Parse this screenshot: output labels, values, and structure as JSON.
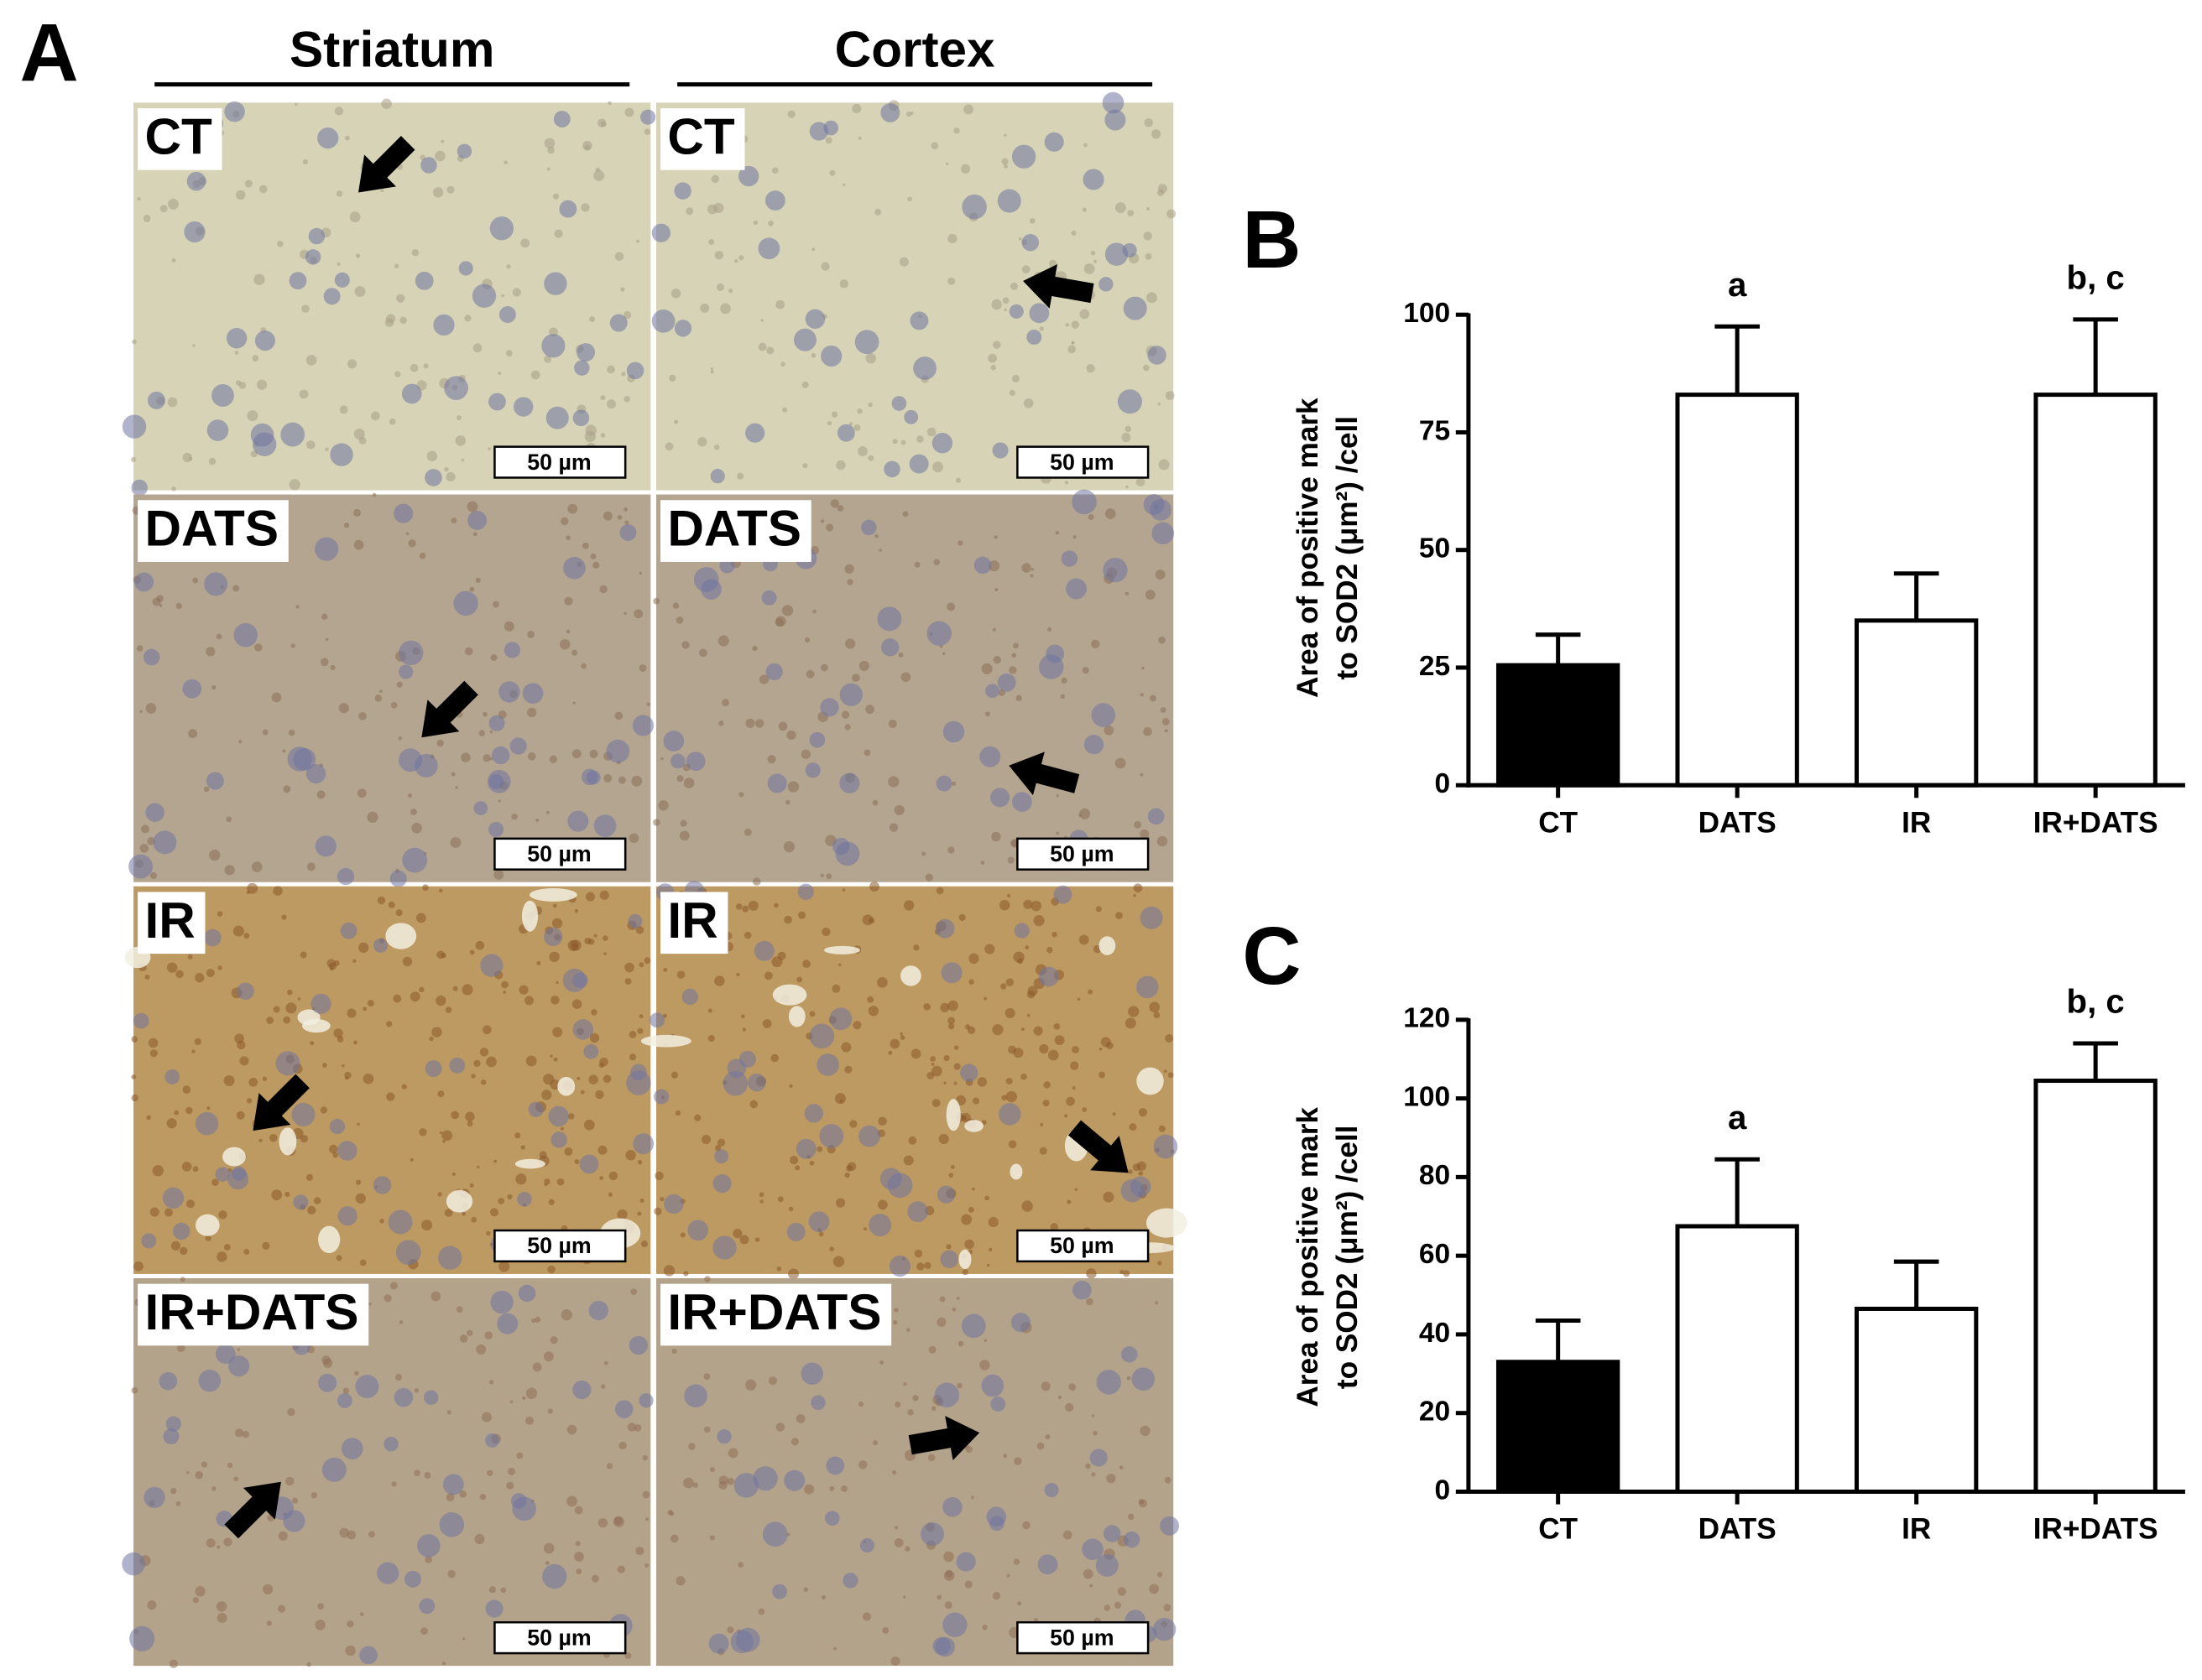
{
  "panel_a": {
    "label": "A",
    "columns": [
      {
        "title": "Striatum",
        "panels": [
          {
            "label": "CT",
            "scale_bar": "50 µm"
          },
          {
            "label": "DATS",
            "scale_bar": "50 µm"
          },
          {
            "label": "IR",
            "scale_bar": "50 µm"
          },
          {
            "label": "IR+DATS",
            "scale_bar": "50 µm"
          }
        ]
      },
      {
        "title": "Cortex",
        "panels": [
          {
            "label": "CT",
            "scale_bar": "50 µm"
          },
          {
            "label": "DATS",
            "scale_bar": "50 µm"
          },
          {
            "label": "IR",
            "scale_bar": "50 µm"
          },
          {
            "label": "IR+DATS",
            "scale_bar": "50 µm"
          }
        ]
      }
    ]
  },
  "chart_data": [
    {
      "type": "bar",
      "panel_label": "B",
      "ylabel": [
        "Area of positive mark",
        "to SOD2 (μm²) /cell"
      ],
      "categories": [
        "CT",
        "DATS",
        "IR",
        "IR+DATS"
      ],
      "values": [
        25.5,
        83,
        35,
        83
      ],
      "errors": [
        6.5,
        14.5,
        10,
        16
      ],
      "colors": [
        "#000000",
        "#ffffff",
        "#ffffff",
        "#ffffff"
      ],
      "edge_color": "#000000",
      "annotations": [
        null,
        "a",
        null,
        "b, c"
      ],
      "ylim": [
        0,
        100
      ],
      "yticks": [
        0,
        25,
        50,
        75,
        100
      ]
    },
    {
      "type": "bar",
      "panel_label": "C",
      "ylabel": [
        "Area of positive mark",
        "to SOD2 (μm²) /cell"
      ],
      "categories": [
        "CT",
        "DATS",
        "IR",
        "IR+DATS"
      ],
      "values": [
        33,
        67.5,
        46.5,
        104.5
      ],
      "errors": [
        10.5,
        17,
        12,
        9.5
      ],
      "colors": [
        "#000000",
        "#ffffff",
        "#ffffff",
        "#ffffff"
      ],
      "edge_color": "#000000",
      "annotations": [
        null,
        "a",
        null,
        "b, c"
      ],
      "ylim": [
        0,
        120
      ],
      "yticks": [
        0,
        20,
        40,
        60,
        80,
        100,
        120
      ]
    }
  ]
}
